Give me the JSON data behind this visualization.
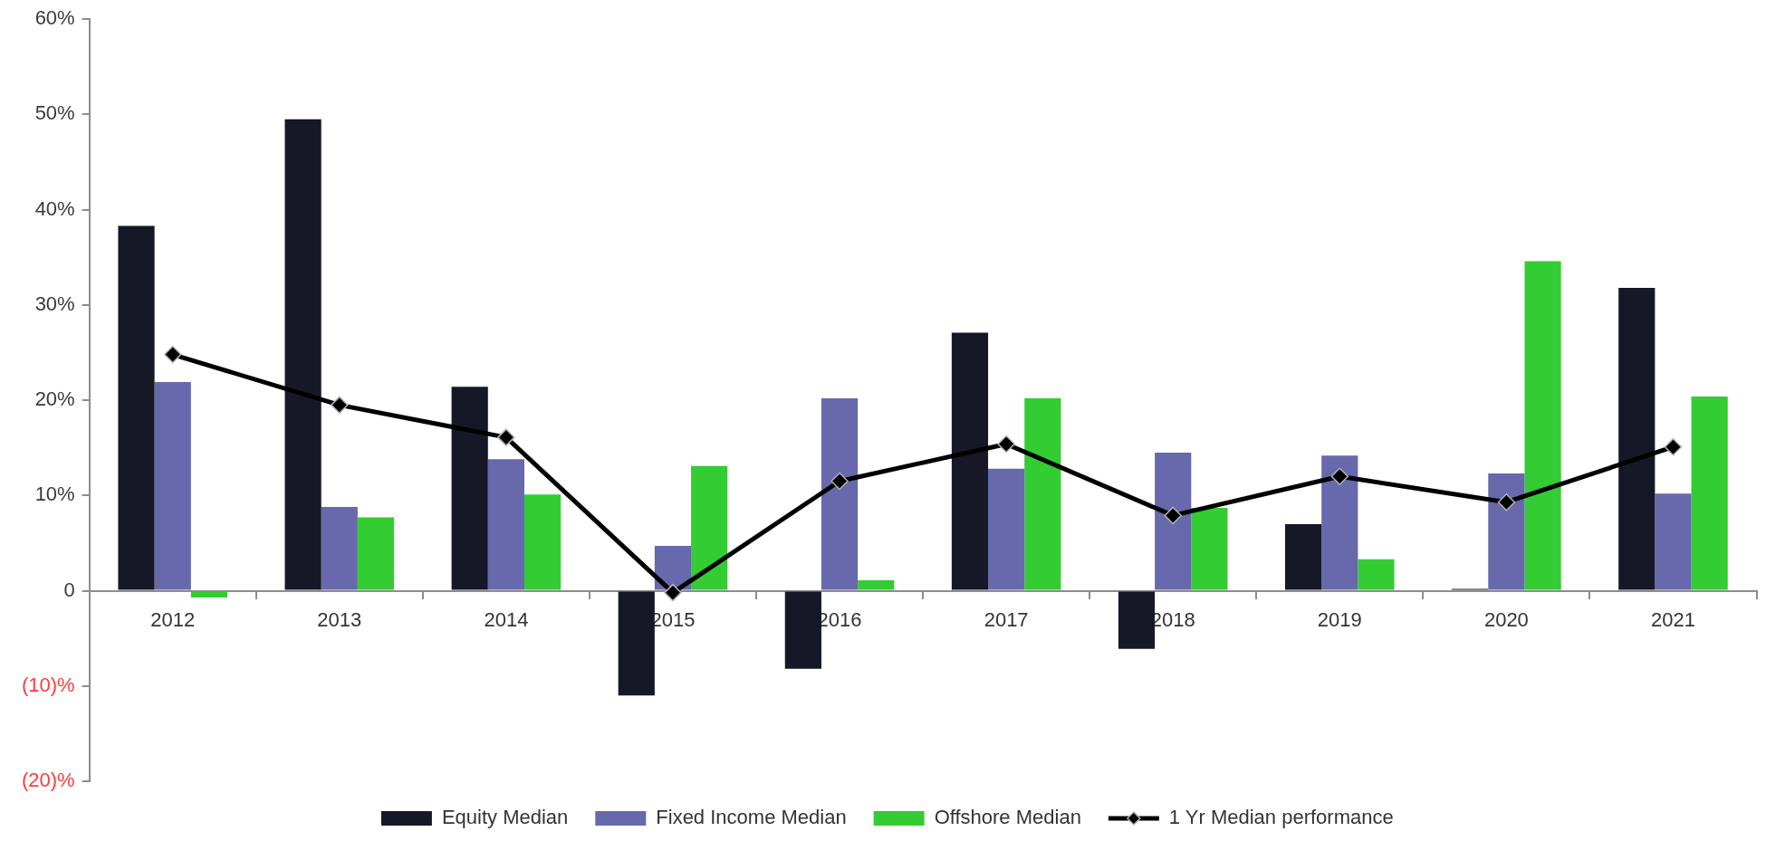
{
  "chart_data": {
    "type": "bar",
    "categories": [
      "2012",
      "2013",
      "2014",
      "2015",
      "2016",
      "2017",
      "2018",
      "2019",
      "2020",
      "2021"
    ],
    "series": [
      {
        "name": "Equity Median",
        "color": "#161827",
        "values": [
          38.3,
          49.5,
          21.4,
          -11.0,
          -8.2,
          27.1,
          -6.1,
          7.0,
          0.2,
          31.8
        ]
      },
      {
        "name": "Fixed Income Median",
        "color": "#6769ac",
        "values": [
          21.9,
          8.8,
          13.8,
          4.7,
          20.2,
          12.8,
          14.5,
          14.2,
          12.3,
          10.2
        ]
      },
      {
        "name": "Offshore Median",
        "color": "#33cc33",
        "values": [
          -0.7,
          7.7,
          10.1,
          13.1,
          1.1,
          20.2,
          8.7,
          3.3,
          34.6,
          20.4
        ]
      },
      {
        "name": "1 Yr Median performance",
        "type": "line",
        "color": "#000000",
        "values": [
          24.8,
          19.5,
          16.1,
          -0.2,
          11.5,
          15.4,
          7.9,
          12.0,
          9.3,
          15.1
        ]
      }
    ],
    "ylim": [
      -20,
      60
    ],
    "yticks": [
      {
        "value": -20,
        "label": "(20)%"
      },
      {
        "value": -10,
        "label": "(10)%"
      },
      0,
      {
        "value": 10,
        "label": "10%"
      },
      {
        "value": 20,
        "label": "20%"
      },
      {
        "value": 30,
        "label": "30%"
      },
      {
        "value": 40,
        "label": "40%"
      },
      {
        "value": 50,
        "label": "50%"
      },
      {
        "value": 60,
        "label": "60%"
      }
    ],
    "legend": "bottom",
    "marker": "diamond",
    "line_style": "solid"
  }
}
